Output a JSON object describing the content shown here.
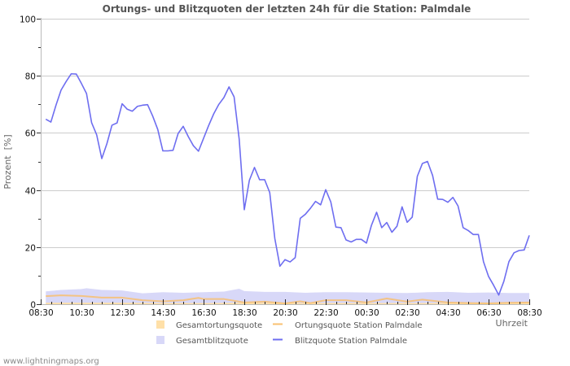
{
  "page": {
    "watermark": "www.lightningmaps.org"
  },
  "legend": {
    "items": [
      {
        "label": "Gesamtortungsquote",
        "kind": "area",
        "color": "#ffe0a8"
      },
      {
        "label": "Ortungsquote Station Palmdale",
        "kind": "line",
        "color": "#f8c070"
      },
      {
        "label": "Gesamtblitzquote",
        "kind": "area",
        "color": "#d8d8f8"
      },
      {
        "label": "Blitzquote Station Palmdale",
        "kind": "line",
        "color": "#6e6ef0"
      }
    ]
  },
  "chart_data": {
    "type": "line",
    "title": "Ortungs- und Blitzquoten der letzten 24h für die Station: Palmdale",
    "xlabel": "Uhrzeit",
    "ylabel": "Prozent  [%]",
    "ylim": [
      0,
      100
    ],
    "yticks": [
      0,
      20,
      40,
      60,
      80,
      100
    ],
    "yminor": [
      10,
      30,
      50,
      70,
      90
    ],
    "xticks": [
      "08:30",
      "10:30",
      "12:30",
      "14:30",
      "16:30",
      "18:30",
      "20:30",
      "22:30",
      "00:30",
      "02:30",
      "04:30",
      "06:30",
      "08:30"
    ],
    "grid": true,
    "legend_position": "bottom",
    "series": [
      {
        "name": "Blitzquote Station Palmdale",
        "kind": "line",
        "color": "#6e6ef0",
        "x": [
          "08:45",
          "09:00",
          "09:15",
          "09:30",
          "09:45",
          "10:00",
          "10:15",
          "10:30",
          "10:45",
          "11:00",
          "11:15",
          "11:30",
          "11:45",
          "12:00",
          "12:15",
          "12:30",
          "12:45",
          "13:00",
          "13:15",
          "13:30",
          "13:45",
          "14:00",
          "14:15",
          "14:30",
          "14:45",
          "15:00",
          "15:15",
          "15:30",
          "15:45",
          "16:00",
          "16:15",
          "16:30",
          "16:45",
          "17:00",
          "17:15",
          "17:30",
          "17:45",
          "18:00",
          "18:15",
          "18:30",
          "18:45",
          "19:00",
          "19:15",
          "19:30",
          "19:45",
          "20:00",
          "20:15",
          "20:30",
          "20:45",
          "21:00",
          "21:15",
          "21:30",
          "21:45",
          "22:00",
          "22:15",
          "22:30",
          "22:45",
          "23:00",
          "23:15",
          "23:30",
          "23:45",
          "00:00",
          "00:15",
          "00:30",
          "00:45",
          "01:00",
          "01:15",
          "01:30",
          "01:45",
          "02:00",
          "02:15",
          "02:30",
          "02:45",
          "03:00",
          "03:15",
          "03:30",
          "03:45",
          "04:00",
          "04:15",
          "04:30",
          "04:45",
          "05:00",
          "05:15",
          "05:30",
          "05:45",
          "06:00",
          "06:15",
          "06:30",
          "06:45",
          "07:00",
          "07:15",
          "07:30",
          "07:45",
          "08:00",
          "08:15",
          "08:30"
        ],
        "values": [
          64.8,
          63.8,
          69.7,
          75.0,
          78.0,
          80.7,
          80.6,
          77.3,
          73.8,
          63.6,
          59.3,
          51.0,
          56.2,
          62.7,
          63.5,
          70.2,
          68.3,
          67.6,
          69.3,
          69.7,
          69.9,
          65.9,
          61.2,
          53.7,
          53.7,
          53.9,
          59.8,
          62.3,
          58.7,
          55.5,
          53.6,
          58.1,
          62.6,
          66.7,
          70.0,
          72.4,
          76.1,
          72.6,
          57.8,
          33.1,
          43.4,
          47.9,
          43.6,
          43.6,
          39.1,
          23.0,
          13.3,
          15.6,
          14.8,
          16.3,
          30.1,
          31.5,
          33.6,
          36.0,
          34.8,
          40.1,
          35.8,
          27.0,
          26.8,
          22.5,
          21.8,
          22.7,
          22.7,
          21.4,
          27.7,
          32.2,
          26.8,
          28.6,
          25.2,
          27.3,
          34.1,
          28.7,
          30.5,
          44.8,
          49.3,
          50.0,
          45.1,
          36.8,
          36.7,
          35.7,
          37.4,
          34.4,
          26.8,
          25.8,
          24.4,
          24.4,
          14.9,
          9.7,
          6.6,
          3.2,
          8.0,
          14.9,
          18.0,
          18.8,
          19.0,
          24.1
        ]
      },
      {
        "name": "Gesamtblitzquote",
        "kind": "area",
        "color": "#d8d8f8",
        "x": [
          "08:45",
          "09:30",
          "10:30",
          "10:45",
          "11:30",
          "12:30",
          "13:30",
          "14:30",
          "15:30",
          "16:30",
          "17:30",
          "18:15",
          "18:30",
          "19:30",
          "20:30",
          "21:30",
          "22:30",
          "23:30",
          "00:30",
          "01:30",
          "02:30",
          "03:30",
          "04:30",
          "05:30",
          "06:30",
          "07:30",
          "08:30"
        ],
        "values": [
          4.5,
          5.0,
          5.3,
          5.6,
          5.0,
          4.8,
          3.8,
          4.2,
          4.0,
          4.2,
          4.4,
          5.4,
          4.6,
          4.3,
          4.3,
          4.0,
          4.2,
          4.2,
          4.1,
          4.0,
          3.9,
          4.2,
          4.3,
          4.0,
          4.1,
          3.9,
          3.9
        ]
      },
      {
        "name": "Gesamtortungsquote",
        "kind": "area",
        "color": "#ffe0a8",
        "x": [
          "08:45",
          "10:30",
          "12:30",
          "14:30",
          "16:30",
          "18:30",
          "20:30",
          "22:30",
          "00:30",
          "02:30",
          "04:30",
          "06:30",
          "08:30"
        ],
        "values": [
          0.5,
          0.5,
          0.5,
          0.4,
          0.4,
          0.5,
          0.4,
          0.4,
          0.4,
          0.4,
          0.4,
          0.4,
          0.4
        ]
      },
      {
        "name": "Ortungsquote Station Palmdale",
        "kind": "line",
        "color": "#f8c070",
        "x": [
          "08:45",
          "09:30",
          "10:30",
          "11:30",
          "12:30",
          "13:30",
          "14:30",
          "15:30",
          "16:15",
          "16:30",
          "17:30",
          "18:30",
          "19:30",
          "20:30",
          "21:15",
          "21:45",
          "22:30",
          "23:30",
          "00:30",
          "01:30",
          "02:30",
          "03:15",
          "04:30",
          "05:30",
          "06:30",
          "07:30",
          "08:30"
        ],
        "values": [
          2.8,
          3.1,
          2.9,
          2.3,
          2.3,
          1.4,
          1.0,
          1.4,
          2.2,
          1.8,
          1.8,
          0.6,
          0.9,
          0.3,
          1.0,
          0.4,
          1.4,
          1.4,
          0.6,
          2.0,
          0.9,
          1.6,
          0.6,
          0.4,
          0.3,
          0.5,
          0.6
        ]
      }
    ]
  }
}
